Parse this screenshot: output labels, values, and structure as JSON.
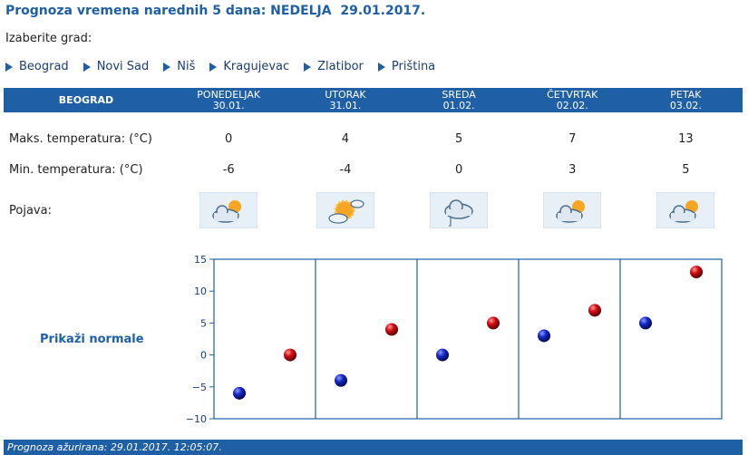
{
  "title": "Prognoza vremena narednih 5 dana: NEDELJA  29.01.2017.",
  "choose_city_label": "Izaberite grad:",
  "cities": [
    "Beograd",
    "Novi Sad",
    "Niš",
    "Kragujevac",
    "Zlatibor",
    "Priština"
  ],
  "table": {
    "city": "BEOGRAD",
    "days": [
      {
        "name": "PONEDELJAK",
        "date": "30.01.",
        "max": "0",
        "min": "-6",
        "icon": "cloud-sun-icon"
      },
      {
        "name": "UTORAK",
        "date": "31.01.",
        "max": "4",
        "min": "-4",
        "icon": "sun-cloud-icon"
      },
      {
        "name": "SREDA",
        "date": "01.02.",
        "max": "5",
        "min": "0",
        "icon": "cloud-umbrella-icon"
      },
      {
        "name": "ČETVRTAK",
        "date": "02.02.",
        "max": "7",
        "min": "3",
        "icon": "cloud-sun-icon"
      },
      {
        "name": "PETAK",
        "date": "03.02.",
        "max": "13",
        "min": "5",
        "icon": "cloud-sun-icon"
      }
    ],
    "labels": {
      "max": "Maks. temperatura: (°C)",
      "min": "Min. temperatura: (°C)",
      "phenomenon": "Pojava:"
    }
  },
  "show_normals": "Prikaži normale",
  "chart_data": {
    "type": "scatter",
    "categories": [
      "PONEDELJAK",
      "UTORAK",
      "SREDA",
      "ČETVRTAK",
      "PETAK"
    ],
    "series": [
      {
        "values": [
          -6,
          -4,
          0,
          3,
          5
        ],
        "color": "#0a1aa8"
      },
      {
        "values": [
          0,
          4,
          5,
          7,
          13
        ],
        "color": "#c8000a"
      }
    ],
    "yticks": [
      "15",
      "10",
      "5",
      "0",
      "−5",
      "−10"
    ],
    "ylim": [
      -10,
      15
    ],
    "grid": false
  },
  "footer": "Prognoza ažurirana:  29.01.2017. 12:05:07."
}
